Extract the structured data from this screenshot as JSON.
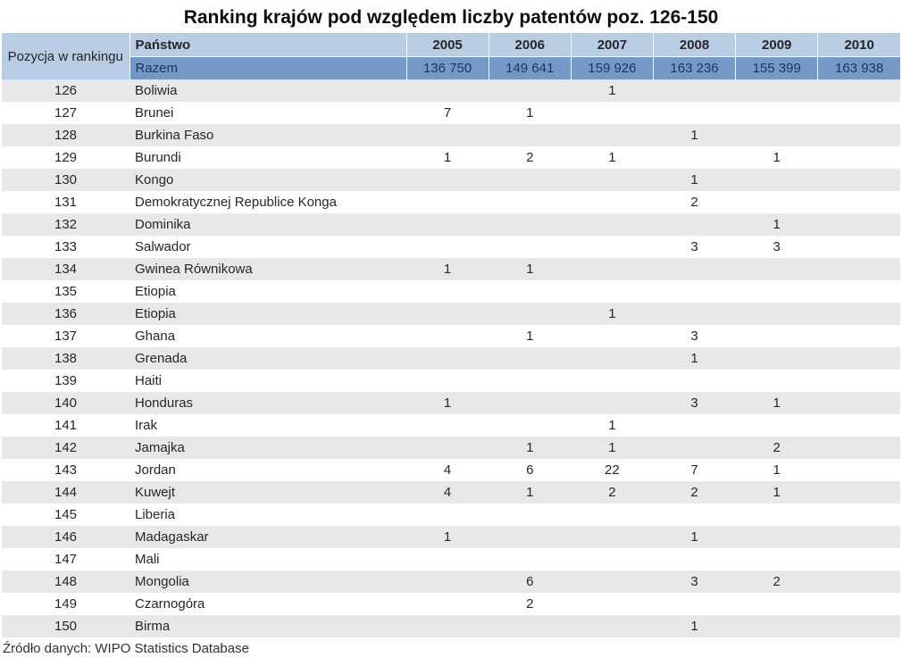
{
  "title": "Ranking krajów pod względem liczby patentów poz. 126-150",
  "source": "Źródło danych: WIPO Statistics Database",
  "colors": {
    "header_blue": "#b8cce4",
    "total_blue": "#7499c7",
    "stripe_gray": "#e8e8e8"
  },
  "chart_data": {
    "type": "table",
    "title": "Ranking krajów pod względem liczby patentów poz. 126-150",
    "position_header": "Pozycja w rankingu",
    "country_header": "Państwo",
    "years": [
      "2005",
      "2006",
      "2007",
      "2008",
      "2009",
      "2010"
    ],
    "total_label": "Razem",
    "total_values": [
      "136 750",
      "149 641",
      "159 926",
      "163 236",
      "155 399",
      "163 938"
    ],
    "rows": [
      [
        "126",
        "Boliwia",
        "",
        "",
        "1",
        "",
        "",
        ""
      ],
      [
        "127",
        "Brunei",
        "7",
        "1",
        "",
        "",
        "",
        ""
      ],
      [
        "128",
        "Burkina Faso",
        "",
        "",
        "",
        "1",
        "",
        ""
      ],
      [
        "129",
        "Burundi",
        "1",
        "2",
        "1",
        "",
        "1",
        ""
      ],
      [
        "130",
        "Kongo",
        "",
        "",
        "",
        "1",
        "",
        ""
      ],
      [
        "131",
        "Demokratycznej Republice Konga",
        "",
        "",
        "",
        "2",
        "",
        ""
      ],
      [
        "132",
        "Dominika",
        "",
        "",
        "",
        "",
        "1",
        ""
      ],
      [
        "133",
        "Salwador",
        "",
        "",
        "",
        "3",
        "3",
        ""
      ],
      [
        "134",
        "Gwinea Równikowa",
        "1",
        "1",
        "",
        "",
        "",
        ""
      ],
      [
        "135",
        "Etiopia",
        "",
        "",
        "",
        "",
        "",
        ""
      ],
      [
        "136",
        "Etiopia",
        "",
        "",
        "1",
        "",
        "",
        ""
      ],
      [
        "137",
        "Ghana",
        "",
        "1",
        "",
        "3",
        "",
        ""
      ],
      [
        "138",
        "Grenada",
        "",
        "",
        "",
        "1",
        "",
        ""
      ],
      [
        "139",
        "Haiti",
        "",
        "",
        "",
        "",
        "",
        ""
      ],
      [
        "140",
        "Honduras",
        "1",
        "",
        "",
        "3",
        "1",
        ""
      ],
      [
        "141",
        "Irak",
        "",
        "",
        "1",
        "",
        "",
        ""
      ],
      [
        "142",
        "Jamajka",
        "",
        "1",
        "1",
        "",
        "2",
        ""
      ],
      [
        "143",
        "Jordan",
        "4",
        "6",
        "22",
        "7",
        "1",
        ""
      ],
      [
        "144",
        "Kuwejt",
        "4",
        "1",
        "2",
        "2",
        "1",
        ""
      ],
      [
        "145",
        "Liberia",
        "",
        "",
        "",
        "",
        "",
        ""
      ],
      [
        "146",
        "Madagaskar",
        "1",
        "",
        "",
        "1",
        "",
        ""
      ],
      [
        "147",
        "Mali",
        "",
        "",
        "",
        "",
        "",
        ""
      ],
      [
        "148",
        "Mongolia",
        "",
        "6",
        "",
        "3",
        "2",
        ""
      ],
      [
        "149",
        "Czarnogóra",
        "",
        "2",
        "",
        "",
        "",
        ""
      ],
      [
        "150",
        "Birma",
        "",
        "",
        "",
        "1",
        "",
        ""
      ]
    ],
    "source_note": "Źródło danych: WIPO Statistics Database"
  }
}
